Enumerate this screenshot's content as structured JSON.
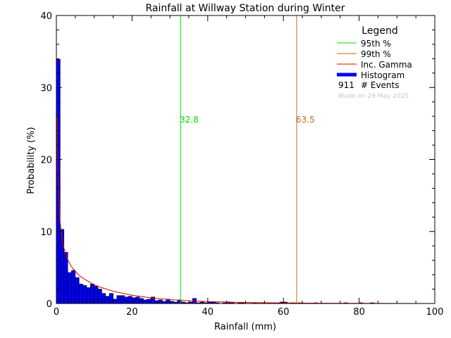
{
  "chart_data": {
    "type": "bar",
    "title": "Rainfall at Willway Station during Winter",
    "xlabel": "Rainfall (mm)",
    "ylabel": "Probability (%)",
    "xlim": [
      0,
      100
    ],
    "ylim": [
      0,
      40
    ],
    "x_ticks": [
      "0",
      "20",
      "40",
      "60",
      "80",
      "100"
    ],
    "y_ticks": [
      "0",
      "10",
      "20",
      "30",
      "40"
    ],
    "grid": false,
    "legend": {
      "title": "Legend",
      "placement": "top-right",
      "entries": [
        {
          "label": "95th %",
          "color": "#00dd00"
        },
        {
          "label": "99th %",
          "color": "#b86a1e"
        },
        {
          "label": "Inc. Gamma",
          "color": "#dd0000"
        },
        {
          "label": "Histogram",
          "color": "#0000ee"
        }
      ],
      "events_count": "911",
      "events_label": "# Events",
      "made_on": "Made on 29 May 2025"
    },
    "percentile_95": {
      "value": 32.8,
      "label": "32.8",
      "color": "#00dd00"
    },
    "percentile_99": {
      "value": 63.5,
      "label": "63.5",
      "color": "#b86a1e"
    },
    "histogram": {
      "bin_width": 1,
      "bin_start": 0,
      "color": "#0000ee",
      "values": [
        33.9,
        10.3,
        7.1,
        4.3,
        4.6,
        3.6,
        2.7,
        2.5,
        2.2,
        2.7,
        2.4,
        2.0,
        1.4,
        1.0,
        1.4,
        0.6,
        1.1,
        1.1,
        0.9,
        1.0,
        0.8,
        0.9,
        0.7,
        0.5,
        0.6,
        0.9,
        0.4,
        0.5,
        0.3,
        0.6,
        0.3,
        0.2,
        0.5,
        0.2,
        0.1,
        0.2,
        0.7,
        0.1,
        0.2,
        0.1,
        0.2,
        0.2,
        0.1,
        0.0,
        0.1,
        0.2,
        0.1,
        0.0,
        0.1,
        0.1,
        0.0,
        0.0,
        0.1,
        0.0,
        0.1,
        0.0,
        0.0,
        0.1,
        0.0,
        0.2,
        0.2,
        0.0,
        0.1,
        0.0,
        0.1,
        0.0,
        0.0,
        0.0,
        0.1,
        0.0,
        0.0,
        0.0,
        0.0,
        0.0,
        0.0,
        0.0,
        0.1,
        0.0,
        0.0,
        0.0,
        0.1,
        0.0,
        0.0,
        0.1,
        0.0,
        0.0,
        0.0,
        0.0,
        0.0,
        0.0,
        0.0,
        0.0,
        0.0,
        0.0,
        0.0,
        0.0,
        0.0,
        0.0,
        0.0,
        0.0
      ]
    },
    "gamma_curve": {
      "color": "#dd0000",
      "x": [
        0.2,
        0.4,
        0.7,
        1,
        1.5,
        2,
        3,
        4,
        5,
        6,
        8,
        10,
        12,
        15,
        20,
        25,
        30,
        35,
        40,
        50,
        60,
        70,
        80,
        90,
        100
      ],
      "y": [
        26.0,
        18.5,
        13.7,
        11.2,
        9.0,
        7.7,
        6.1,
        5.1,
        4.5,
        3.9,
        3.2,
        2.6,
        2.2,
        1.7,
        1.15,
        0.78,
        0.54,
        0.38,
        0.27,
        0.14,
        0.07,
        0.04,
        0.02,
        0.01,
        0.005
      ]
    }
  }
}
